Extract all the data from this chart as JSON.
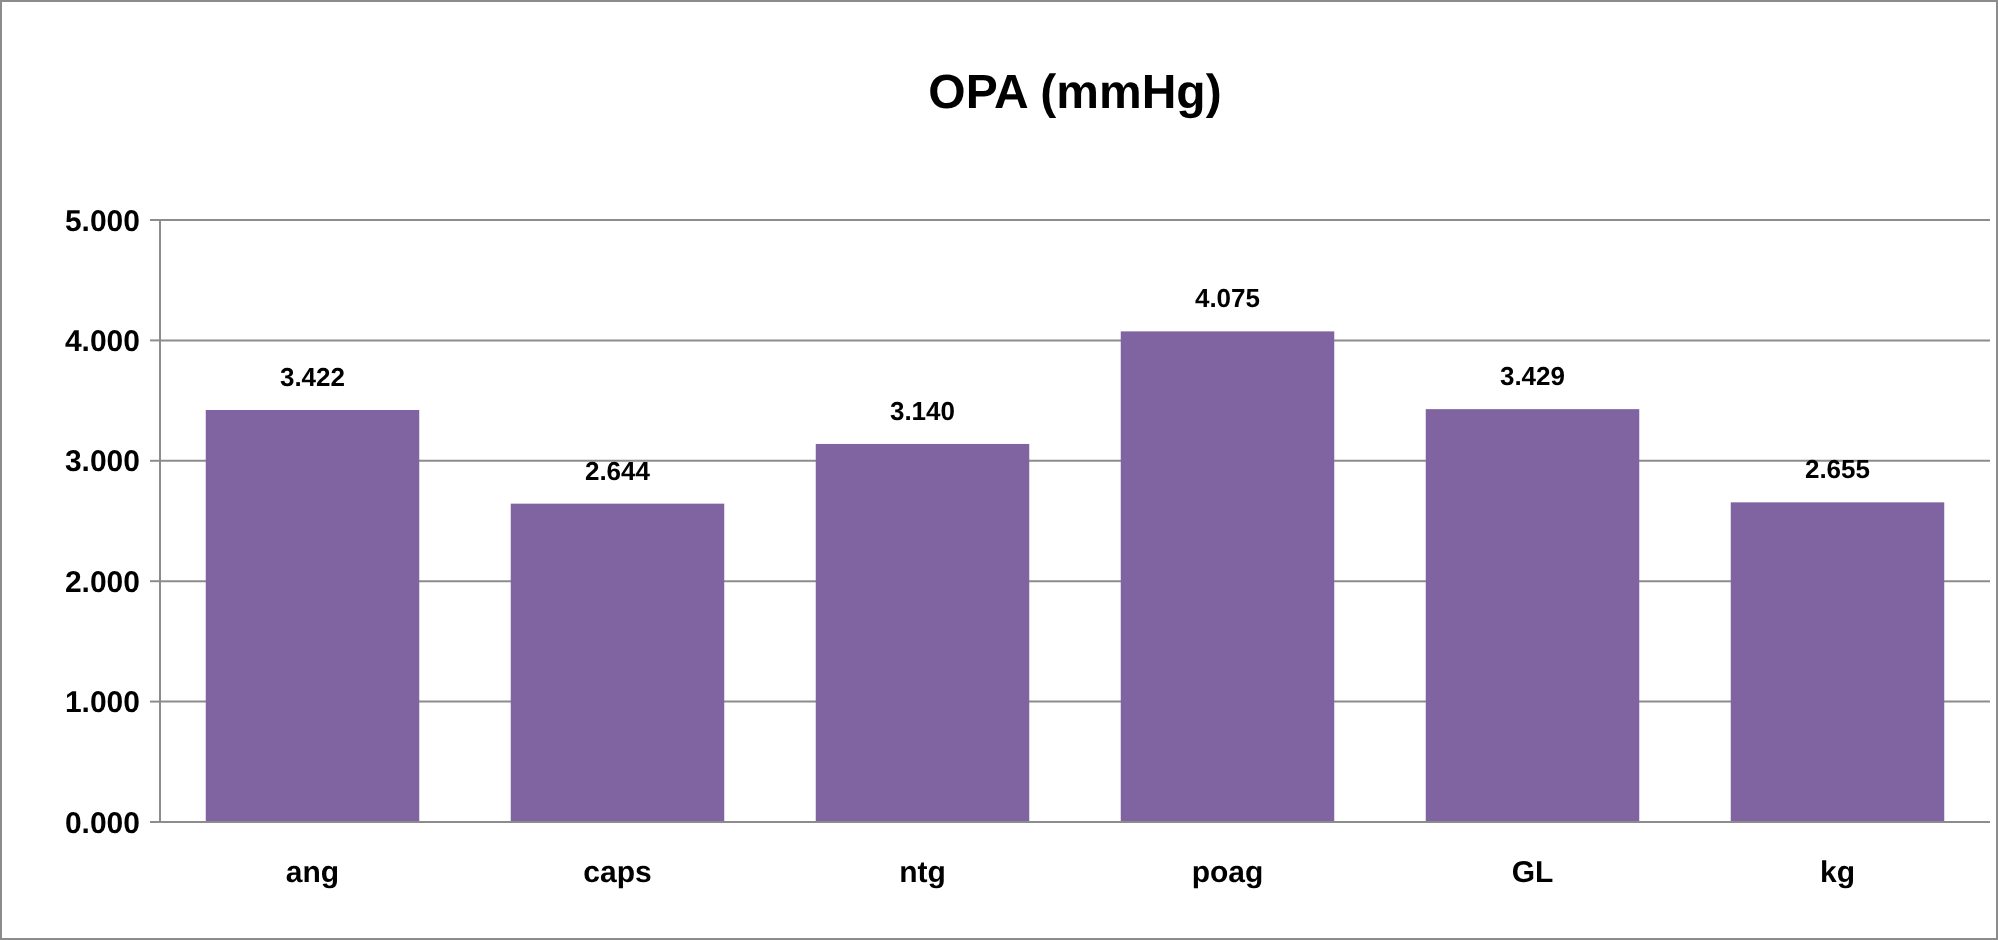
{
  "chart_data": {
    "type": "bar",
    "title": "OPA (mmHg)",
    "categories": [
      "ang",
      "caps",
      "ntg",
      "poag",
      "GL",
      "kg"
    ],
    "values": [
      3.422,
      2.644,
      3.14,
      4.075,
      3.429,
      2.655
    ],
    "color": "#8064a2",
    "ylim": [
      0,
      5
    ],
    "yticks": [
      {
        "value": 0,
        "label": "0.000"
      },
      {
        "value": 1,
        "label": "1.000"
      },
      {
        "value": 2,
        "label": "2.000"
      },
      {
        "value": 3,
        "label": "3.000"
      },
      {
        "value": 4,
        "label": "4.000"
      },
      {
        "value": 5,
        "label": "5.000"
      }
    ],
    "value_labels": [
      "3.422",
      "2.644",
      "3.140",
      "4.075",
      "3.429",
      "2.655"
    ],
    "grid": "y"
  }
}
